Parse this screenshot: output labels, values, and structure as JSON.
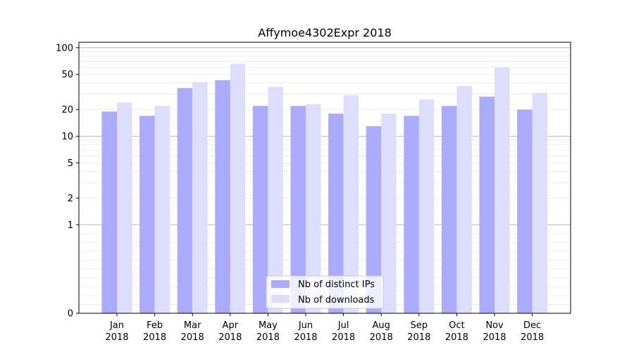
{
  "chart_data": {
    "type": "bar",
    "title": "Affymoe4302Expr 2018",
    "xlabel": "",
    "ylabel": "",
    "yscale": "symlog",
    "ylim": [
      0,
      100
    ],
    "yticks": [
      0,
      1,
      2,
      5,
      10,
      20,
      50,
      100
    ],
    "categories": [
      [
        "Jan",
        "2018"
      ],
      [
        "Feb",
        "2018"
      ],
      [
        "Mar",
        "2018"
      ],
      [
        "Apr",
        "2018"
      ],
      [
        "May",
        "2018"
      ],
      [
        "Jun",
        "2018"
      ],
      [
        "Jul",
        "2018"
      ],
      [
        "Aug",
        "2018"
      ],
      [
        "Sep",
        "2018"
      ],
      [
        "Oct",
        "2018"
      ],
      [
        "Nov",
        "2018"
      ],
      [
        "Dec",
        "2018"
      ]
    ],
    "series": [
      {
        "name": "Nb of distinct IPs",
        "color": "#aaaaff",
        "values": [
          19,
          17,
          35,
          43,
          22,
          22,
          18,
          13,
          17,
          22,
          28,
          20
        ]
      },
      {
        "name": "Nb of downloads",
        "color": "#ddddff",
        "values": [
          24,
          22,
          41,
          66,
          36,
          23,
          29,
          18,
          26,
          37,
          60,
          31
        ]
      }
    ],
    "grid": true,
    "legend_position": "bottom-center"
  }
}
